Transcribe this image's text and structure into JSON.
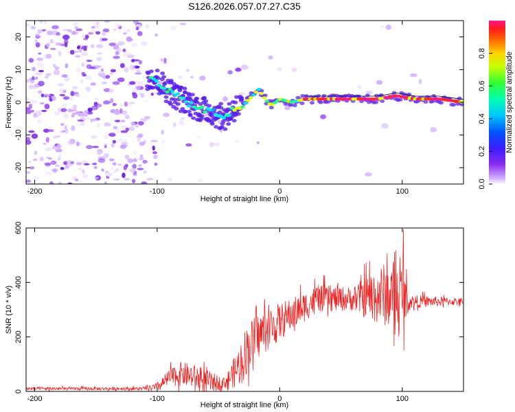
{
  "title": "S126.2026.057.07.27.C35",
  "chart_data": [
    {
      "type": "heatmap",
      "xlabel": "Height of straight line (km)",
      "ylabel": "Frequency (Hz)",
      "xlim": [
        -207,
        150
      ],
      "ylim": [
        -25,
        25
      ],
      "xticks": [
        -200,
        -100,
        0,
        100
      ],
      "xtick_labels": [
        "-200",
        "-100",
        "0",
        "100"
      ],
      "yticks": [
        -20,
        -10,
        0,
        10,
        20
      ],
      "ytick_labels": [
        "-20",
        "-10",
        "0",
        "10",
        "20"
      ],
      "ridge": [
        {
          "x": -105,
          "y": 8
        },
        {
          "x": -95,
          "y": 5
        },
        {
          "x": -85,
          "y": 2
        },
        {
          "x": -75,
          "y": 0
        },
        {
          "x": -65,
          "y": -2
        },
        {
          "x": -55,
          "y": -3
        },
        {
          "x": -45,
          "y": -5
        },
        {
          "x": -38,
          "y": -2
        },
        {
          "x": -30,
          "y": -1
        },
        {
          "x": -22,
          "y": 2
        },
        {
          "x": -17,
          "y": 4
        },
        {
          "x": -12,
          "y": 1
        },
        {
          "x": -7,
          "y": -1
        },
        {
          "x": 0,
          "y": 1
        },
        {
          "x": 10,
          "y": 0
        },
        {
          "x": 20,
          "y": 1
        },
        {
          "x": 40,
          "y": 1
        },
        {
          "x": 60,
          "y": 1
        },
        {
          "x": 80,
          "y": 1
        },
        {
          "x": 95,
          "y": 2
        },
        {
          "x": 110,
          "y": 1
        },
        {
          "x": 130,
          "y": 1
        },
        {
          "x": 150,
          "y": 0
        }
      ],
      "colorbar": {
        "label": "Normalized spectral amplitude",
        "range": [
          0,
          1
        ],
        "ticks": [
          0.0,
          0.2,
          0.4,
          0.6,
          0.8
        ],
        "tick_labels": [
          "0.0",
          "0.2",
          "0.4",
          "0.6",
          "0.8"
        ]
      }
    },
    {
      "type": "line",
      "xlabel": "Height of straight line (km)",
      "ylabel": "SNR (10 * v/v)",
      "xlim": [
        -207,
        150
      ],
      "ylim": [
        0,
        600
      ],
      "xticks": [
        -200,
        -100,
        0,
        100
      ],
      "xtick_labels": [
        "-200",
        "-100",
        "0",
        "100"
      ],
      "yticks": [
        0,
        200,
        400,
        600
      ],
      "ytick_labels": [
        "0",
        "200",
        "400",
        "600"
      ],
      "color": "#ee2222",
      "envelope": [
        {
          "x": -207,
          "y": 10
        },
        {
          "x": -110,
          "y": 10
        },
        {
          "x": -100,
          "y": 15
        },
        {
          "x": -90,
          "y": 50
        },
        {
          "x": -80,
          "y": 65
        },
        {
          "x": -70,
          "y": 55
        },
        {
          "x": -60,
          "y": 35
        },
        {
          "x": -45,
          "y": 30
        },
        {
          "x": -35,
          "y": 80
        },
        {
          "x": -25,
          "y": 170
        },
        {
          "x": -15,
          "y": 215
        },
        {
          "x": -5,
          "y": 240
        },
        {
          "x": 5,
          "y": 270
        },
        {
          "x": 20,
          "y": 310
        },
        {
          "x": 30,
          "y": 340
        },
        {
          "x": 60,
          "y": 340
        },
        {
          "x": 85,
          "y": 355
        },
        {
          "x": 100,
          "y": 345
        },
        {
          "x": 105,
          "y": 330
        },
        {
          "x": 150,
          "y": 330
        }
      ],
      "noise_amplitude": [
        {
          "x": -207,
          "a": 6
        },
        {
          "x": -110,
          "a": 6
        },
        {
          "x": -100,
          "a": 18
        },
        {
          "x": -80,
          "a": 45
        },
        {
          "x": -60,
          "a": 45
        },
        {
          "x": -45,
          "a": 20
        },
        {
          "x": -30,
          "a": 90
        },
        {
          "x": -10,
          "a": 80
        },
        {
          "x": 10,
          "a": 60
        },
        {
          "x": 30,
          "a": 50
        },
        {
          "x": 60,
          "a": 45
        },
        {
          "x": 80,
          "a": 110
        },
        {
          "x": 100,
          "a": 130
        },
        {
          "x": 106,
          "a": 25
        },
        {
          "x": 150,
          "a": 12
        }
      ],
      "peak": {
        "x": 101,
        "y": 595
      }
    }
  ]
}
